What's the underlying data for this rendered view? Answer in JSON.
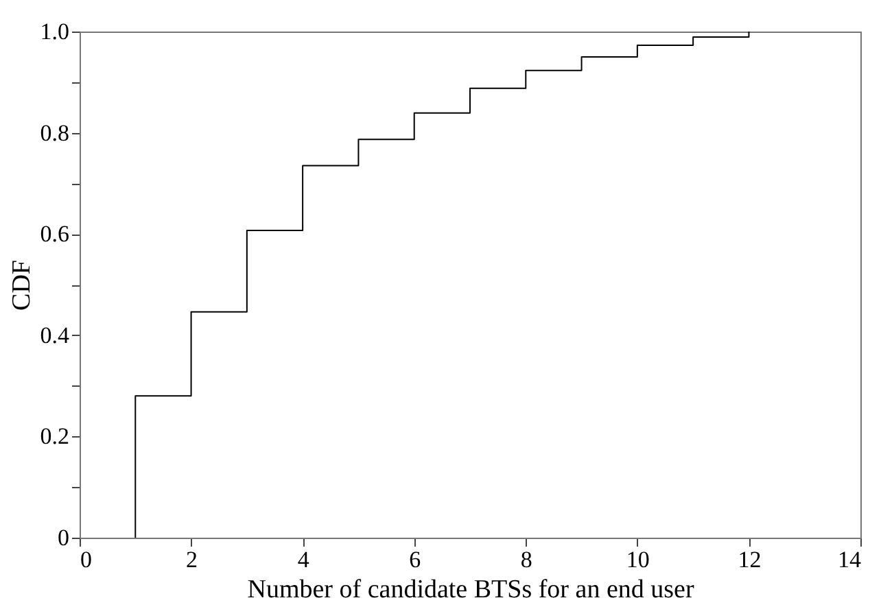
{
  "chart_data": {
    "type": "step",
    "xlabel": "Number of candidate BTSs for an end user",
    "ylabel": "CDF",
    "x": [
      1,
      1,
      2,
      3,
      4,
      5,
      6,
      7,
      8,
      9,
      10,
      11,
      12
    ],
    "series": [
      {
        "color": "#000000",
        "values": [
          0,
          0.28,
          0.446,
          0.607,
          0.735,
          0.787,
          0.839,
          0.888,
          0.923,
          0.95,
          0.973,
          0.989,
          1.0
        ]
      }
    ],
    "xlim": [
      0,
      14
    ],
    "xticks": [
      0,
      2,
      4,
      6,
      8,
      10,
      12,
      14
    ],
    "ylim": [
      0,
      1
    ],
    "yticks": [
      0,
      {
        "value": 0.1,
        "label": null
      },
      0.2,
      {
        "value": 0.3,
        "label": null
      },
      0.4,
      {
        "value": 0.5,
        "label": null
      },
      0.6,
      {
        "value": 0.7,
        "label": null
      },
      0.8,
      {
        "value": 0.9,
        "label": null
      },
      {
        "value": 1.0,
        "label": "1.0"
      }
    ],
    "grid": false,
    "marker": "none",
    "line_style": "solid"
  }
}
